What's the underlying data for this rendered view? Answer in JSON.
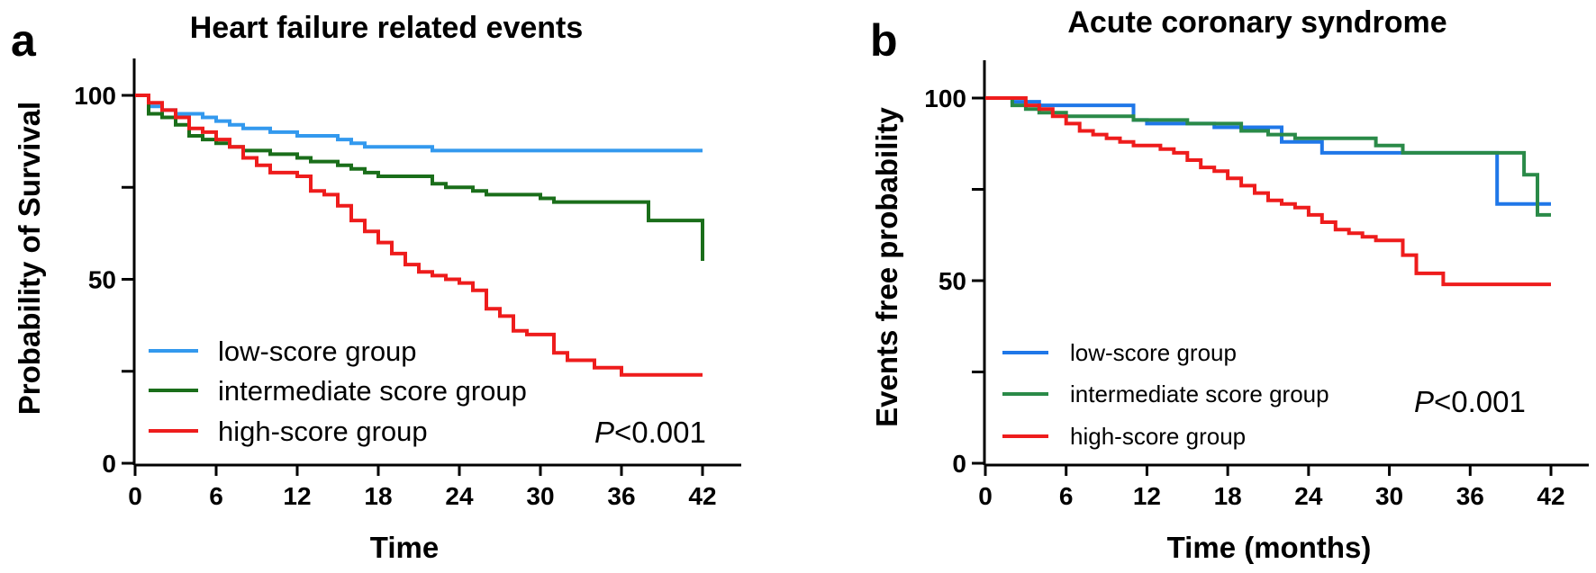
{
  "chart_data": [
    {
      "type": "line",
      "panel": "a",
      "title": "Heart failure related events",
      "xlabel": "Time",
      "ylabel": "Probability of Survival",
      "xlim": [
        0,
        42
      ],
      "ylim": [
        0,
        100
      ],
      "xticks": [
        0,
        6,
        12,
        18,
        24,
        30,
        36,
        42
      ],
      "yticks": [
        0,
        50,
        100
      ],
      "yticks_minor": [
        25,
        75
      ],
      "legend_position": "bottom-left",
      "annotation": {
        "italic": "P",
        "rest": "<0.001"
      },
      "series": [
        {
          "name": "low-score group",
          "color": "#3399ee",
          "x": [
            0,
            1,
            2,
            3,
            4,
            5,
            6,
            7,
            8,
            9,
            10,
            11,
            12,
            14,
            15,
            16,
            17,
            22,
            42
          ],
          "y": [
            100,
            97,
            96,
            95,
            95,
            94,
            93,
            92,
            91,
            91,
            90,
            90,
            89,
            89,
            88,
            87,
            86,
            85,
            85
          ]
        },
        {
          "name": "intermediate score group",
          "color": "#1a6e1a",
          "x": [
            0,
            1,
            2,
            3,
            4,
            5,
            6,
            7,
            8,
            9,
            10,
            11,
            12,
            13,
            15,
            16,
            17,
            18,
            20,
            22,
            23,
            25,
            26,
            28,
            30,
            31,
            34,
            36,
            38,
            42,
            42
          ],
          "y": [
            100,
            95,
            94,
            92,
            89,
            88,
            87,
            86,
            85,
            85,
            84,
            84,
            83,
            82,
            81,
            80,
            79,
            78,
            78,
            76,
            75,
            74,
            73,
            73,
            72,
            71,
            71,
            71,
            66,
            66,
            55
          ]
        },
        {
          "name": "high-score group",
          "color": "#ee1c1c",
          "x": [
            0,
            1,
            2,
            3,
            4,
            5,
            6,
            7,
            8,
            9,
            10,
            11,
            12,
            13,
            14,
            15,
            16,
            17,
            18,
            19,
            20,
            21,
            22,
            23,
            24,
            25,
            26,
            27,
            28,
            29,
            31,
            32,
            34,
            36,
            42
          ],
          "y": [
            100,
            98,
            96,
            94,
            91,
            90,
            88,
            86,
            83,
            81,
            79,
            79,
            78,
            74,
            73,
            70,
            66,
            63,
            60,
            57,
            54,
            52,
            51,
            50,
            49,
            47,
            42,
            40,
            36,
            35,
            30,
            28,
            26,
            24,
            24
          ]
        }
      ]
    },
    {
      "type": "line",
      "panel": "b",
      "title": "Acute coronary syndrome",
      "xlabel": "Time (months)",
      "ylabel": "Events free probability",
      "xlim": [
        0,
        42
      ],
      "ylim": [
        0,
        100
      ],
      "xticks": [
        0,
        6,
        12,
        18,
        24,
        30,
        36,
        42
      ],
      "yticks": [
        0,
        50,
        100
      ],
      "yticks_minor": [
        25,
        75
      ],
      "legend_position": "bottom-left",
      "annotation": {
        "italic": "P",
        "rest": "<0.001"
      },
      "series": [
        {
          "name": "low-score group",
          "color": "#1f77e8",
          "x": [
            0,
            2,
            4,
            11,
            12,
            17,
            22,
            25,
            31,
            35,
            38,
            42
          ],
          "y": [
            100,
            99,
            98,
            94,
            93,
            92,
            88,
            85,
            85,
            85,
            71,
            71
          ]
        },
        {
          "name": "intermediate score group",
          "color": "#2a8a48",
          "x": [
            0,
            2,
            3,
            4,
            6,
            9,
            11,
            15,
            19,
            21,
            23,
            26,
            29,
            31,
            34,
            36,
            38,
            40,
            41,
            42
          ],
          "y": [
            100,
            98,
            97,
            96,
            95,
            95,
            94,
            93,
            91,
            90,
            89,
            89,
            87,
            85,
            85,
            85,
            85,
            79,
            68,
            68
          ]
        },
        {
          "name": "high-score group",
          "color": "#ee1c1c",
          "x": [
            0,
            3,
            4,
            5,
            6,
            7,
            8,
            9,
            10,
            11,
            12,
            13,
            14,
            15,
            16,
            17,
            18,
            19,
            20,
            21,
            22,
            23,
            24,
            25,
            26,
            27,
            28,
            29,
            31,
            32,
            34,
            36,
            42
          ],
          "y": [
            100,
            98,
            97,
            95,
            93,
            91,
            90,
            89,
            88,
            87,
            87,
            86,
            85,
            83,
            81,
            80,
            78,
            76,
            74,
            72,
            71,
            70,
            68,
            66,
            64,
            63,
            62,
            61,
            57,
            52,
            49,
            49,
            49
          ]
        }
      ]
    }
  ]
}
